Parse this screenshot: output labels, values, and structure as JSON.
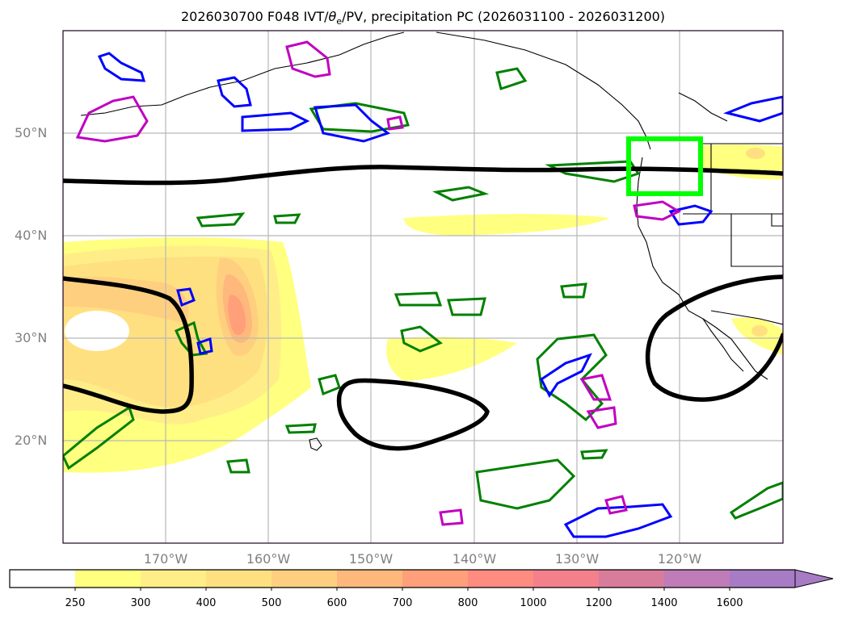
{
  "title": {
    "prefix": "2026030700 F048 IVT/",
    "theta": "θ",
    "theta_sub": "e",
    "suffix": "/PV, precipitation PC (2026031100 - 2026031200)"
  },
  "map": {
    "projection": "PlateCarree",
    "extent_lon": [
      -180,
      -110
    ],
    "extent_lat": [
      10,
      60
    ],
    "lat_labels": [
      {
        "lat": 50,
        "label": "50°N"
      },
      {
        "lat": 40,
        "label": "40°N"
      },
      {
        "lat": 30,
        "label": "30°N"
      },
      {
        "lat": 20,
        "label": "20°N"
      }
    ],
    "lon_labels": [
      {
        "lon": -170,
        "label": "170°W"
      },
      {
        "lon": -160,
        "label": "160°W"
      },
      {
        "lon": -150,
        "label": "150°W"
      },
      {
        "lon": -140,
        "label": "140°W"
      },
      {
        "lon": -130,
        "label": "130°W"
      },
      {
        "lon": -120,
        "label": "120°W"
      }
    ],
    "highlight_box": {
      "lon": [
        -125,
        -118
      ],
      "lat": [
        44,
        49
      ],
      "color": "#00ff00"
    },
    "contour_colors": {
      "pv_theta": "#000000",
      "precip_green": "#008000",
      "precip_blue": "#0000ff",
      "precip_magenta": "#c000c0"
    }
  },
  "colorbar": {
    "levels": [
      "250",
      "300",
      "400",
      "500",
      "600",
      "700",
      "800",
      "1000",
      "1200",
      "1400",
      "1600"
    ],
    "colors": [
      "#ffffff",
      "#ffff80",
      "#ffee88",
      "#ffe080",
      "#ffcf80",
      "#ffb87c",
      "#ffa07a",
      "#ff8c80",
      "#f4808c",
      "#d87c9c",
      "#c07cb8",
      "#a87cc4"
    ],
    "extend": "max"
  }
}
